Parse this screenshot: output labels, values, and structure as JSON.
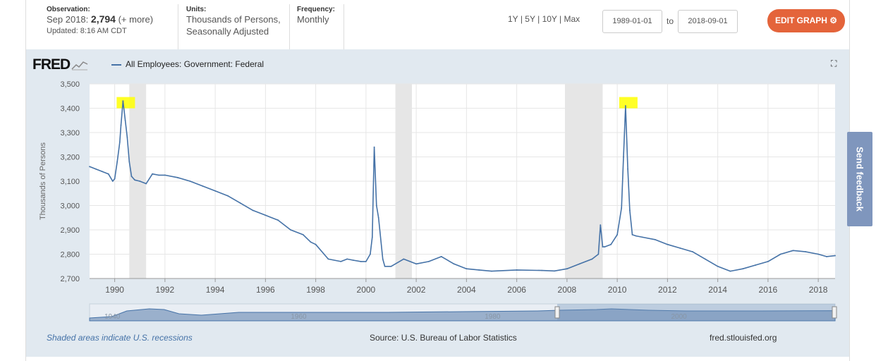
{
  "header": {
    "observation_label": "Observation:",
    "observation_date": "Sep 2018:",
    "observation_value": "2,794",
    "observation_more": "(+ more)",
    "updated": "Updated: 8:16 AM CDT",
    "units_label": "Units:",
    "units_line1": "Thousands of Persons,",
    "units_line2": "Seasonally Adjusted",
    "frequency_label": "Frequency:",
    "frequency_value": "Monthly",
    "range_1y": "1Y",
    "range_5y": "5Y",
    "range_10y": "10Y",
    "range_max": "Max",
    "separator": "|",
    "start_date": "1989-01-01",
    "to_label": "to",
    "end_date": "2018-09-01",
    "edit_button": "EDIT GRAPH"
  },
  "logo_text": "FRED",
  "series_name": "All Employees: Government: Federal",
  "footer": {
    "recession_note": "Shaded areas indicate U.S. recessions",
    "source": "Source: U.S. Bureau of Labor Statistics",
    "site": "fred.stlouisfed.org"
  },
  "feedback_label": "Send feedback",
  "colors": {
    "line": "#4572a7",
    "recession": "#e6e6e6",
    "edit_button": "#e4643b",
    "highlight": "#ffff00"
  },
  "chart_data": {
    "type": "line",
    "title": "All Employees: Government: Federal",
    "ylabel": "Thousands of Persons",
    "xlabel": "",
    "xlim": [
      1989.0,
      2018.67
    ],
    "ylim": [
      2700,
      3500
    ],
    "yticks": [
      2700,
      2800,
      2900,
      3000,
      3100,
      3200,
      3300,
      3400,
      3500
    ],
    "ytick_labels": [
      "2,700",
      "2,800",
      "2,900",
      "3,000",
      "3,100",
      "3,200",
      "3,300",
      "3,400",
      "3,500"
    ],
    "xticks": [
      1990,
      1992,
      1994,
      1996,
      1998,
      2000,
      2002,
      2004,
      2006,
      2008,
      2010,
      2012,
      2014,
      2016,
      2018
    ],
    "xtick_labels": [
      "1990",
      "1992",
      "1994",
      "1996",
      "1998",
      "2000",
      "2002",
      "2004",
      "2006",
      "2008",
      "2010",
      "2012",
      "2014",
      "2016",
      "2018"
    ],
    "recessions": [
      [
        1990.58,
        1991.25
      ],
      [
        2001.17,
        2001.83
      ],
      [
        2007.92,
        2009.42
      ]
    ],
    "highlights": [
      1990.33,
      2010.33
    ],
    "grid": true,
    "series": [
      {
        "name": "All Employees: Government: Federal",
        "x": [
          1989.0,
          1989.25,
          1989.5,
          1989.75,
          1989.92,
          1990.0,
          1990.1,
          1990.2,
          1990.25,
          1990.33,
          1990.42,
          1990.5,
          1990.58,
          1990.67,
          1990.8,
          1991.0,
          1991.25,
          1991.5,
          1991.75,
          1992.0,
          1992.5,
          1993.0,
          1993.5,
          1994.0,
          1994.5,
          1995.0,
          1995.5,
          1996.0,
          1996.5,
          1997.0,
          1997.5,
          1997.8,
          1998.0,
          1998.5,
          1999.0,
          1999.25,
          1999.5,
          1999.8,
          2000.0,
          2000.17,
          2000.25,
          2000.33,
          2000.42,
          2000.5,
          2000.67,
          2000.75,
          2001.0,
          2001.5,
          2002.0,
          2002.5,
          2003.0,
          2003.5,
          2004.0,
          2004.5,
          2005.0,
          2006.0,
          2007.0,
          2007.5,
          2008.0,
          2008.5,
          2009.0,
          2009.25,
          2009.33,
          2009.42,
          2009.5,
          2009.75,
          2010.0,
          2010.17,
          2010.25,
          2010.33,
          2010.42,
          2010.5,
          2010.6,
          2010.75,
          2011.0,
          2011.5,
          2012.0,
          2012.5,
          2013.0,
          2013.5,
          2014.0,
          2014.5,
          2015.0,
          2015.5,
          2016.0,
          2016.5,
          2017.0,
          2017.5,
          2018.0,
          2018.33,
          2018.67
        ],
        "values": [
          3160,
          3150,
          3140,
          3130,
          3100,
          3110,
          3180,
          3260,
          3330,
          3430,
          3350,
          3280,
          3180,
          3120,
          3105,
          3100,
          3090,
          3130,
          3125,
          3125,
          3115,
          3100,
          3080,
          3060,
          3040,
          3010,
          2980,
          2960,
          2940,
          2900,
          2880,
          2850,
          2840,
          2780,
          2770,
          2780,
          2775,
          2770,
          2770,
          2800,
          2870,
          3240,
          3000,
          2950,
          2780,
          2750,
          2750,
          2780,
          2760,
          2770,
          2790,
          2760,
          2740,
          2735,
          2730,
          2735,
          2733,
          2731,
          2740,
          2760,
          2780,
          2800,
          2920,
          2830,
          2830,
          2840,
          2880,
          2990,
          3200,
          3410,
          3150,
          2980,
          2880,
          2875,
          2870,
          2860,
          2840,
          2825,
          2810,
          2780,
          2750,
          2730,
          2740,
          2755,
          2770,
          2800,
          2815,
          2810,
          2800,
          2790,
          2794
        ]
      }
    ]
  },
  "navigator": {
    "tick_labels": [
      "1940",
      "1960",
      "1980",
      "2000"
    ]
  }
}
